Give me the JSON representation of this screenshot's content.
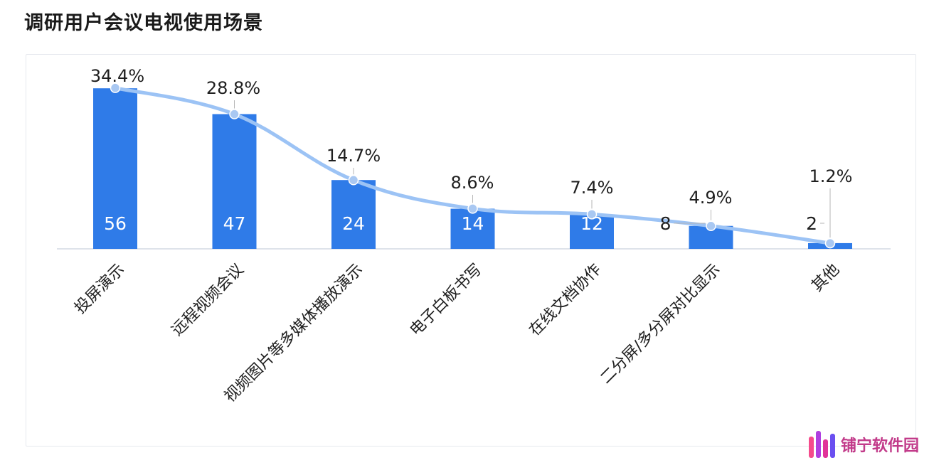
{
  "title": "调研用户会议电视使用场景",
  "watermark": {
    "text": "铺宁软件园",
    "colors": [
      "#f54b8c",
      "#b03fe0",
      "#e13399",
      "#6a4ff0"
    ]
  },
  "colors": {
    "bar": "#2f7be8",
    "line": "#9cc3f5",
    "marker": "#a9c8f2",
    "axis": "#c9d2dd",
    "text": "#1f1f1f",
    "bar_label": "#ffffff"
  },
  "chart_data": {
    "type": "bar",
    "title": "调研用户会议电视使用场景",
    "categories": [
      "投屏演示",
      "远程视频会议",
      "视频图片等多媒体播放演示",
      "电子白板书写",
      "在线文档协作",
      "二分屏/多分屏对比显示",
      "其他"
    ],
    "series": [
      {
        "type": "bar",
        "values": [
          56,
          47,
          24,
          14,
          12,
          8,
          2
        ]
      },
      {
        "type": "line",
        "values": [
          34.4,
          28.8,
          14.7,
          8.6,
          7.4,
          4.9,
          1.2
        ]
      }
    ],
    "bar_labels": [
      "56",
      "47",
      "24",
      "14",
      "12",
      "8",
      "2"
    ],
    "line_labels": [
      "34.4%",
      "28.8%",
      "14.7%",
      "8.6%",
      "7.4%",
      "4.9%",
      "1.2%"
    ],
    "ylim": [
      0,
      62
    ],
    "y2lim": [
      0,
      38
    ],
    "grid": false,
    "legend": "none"
  }
}
